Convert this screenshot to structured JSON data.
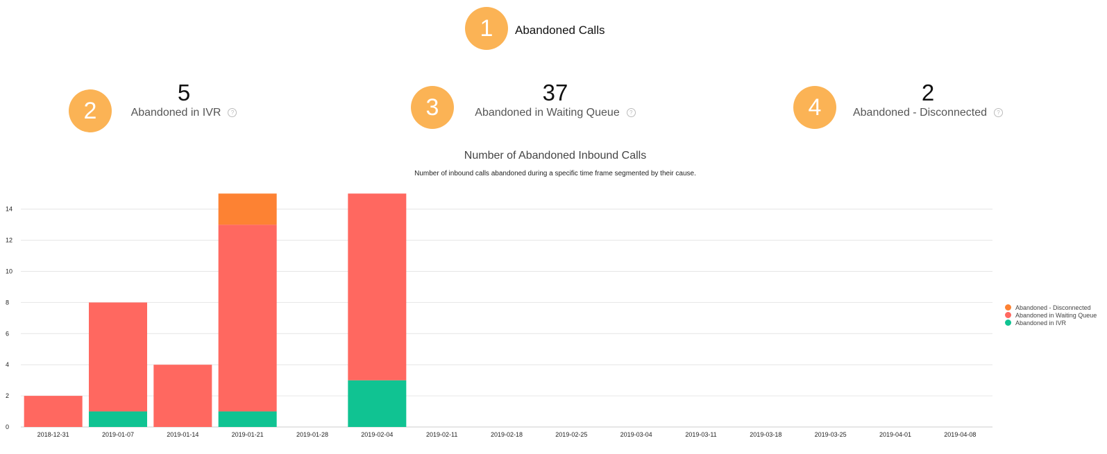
{
  "header": {
    "badge": "1",
    "title": "Abandoned Calls"
  },
  "kpis": [
    {
      "badge": "2",
      "value": "5",
      "label": "Abandoned in IVR",
      "help_icon": "question-circle-icon"
    },
    {
      "badge": "3",
      "value": "37",
      "label": "Abandoned in Waiting Queue",
      "help_icon": "question-circle-icon"
    },
    {
      "badge": "4",
      "value": "2",
      "label": "Abandoned - Disconnected",
      "help_icon": "question-circle-icon"
    }
  ],
  "colors": {
    "badge": "#fbb355",
    "disconnected": "#fd8233",
    "waiting_queue": "#ff6860",
    "ivr": "#10c392",
    "grid": "#e6e6e6"
  },
  "chart_data": {
    "type": "bar",
    "stacked": true,
    "title": "Number of Abandoned Inbound Calls",
    "subtitle": "Number of inbound calls abandoned during a specific time frame segmented by their cause.",
    "categories": [
      "2018-12-31",
      "2019-01-07",
      "2019-01-14",
      "2019-01-21",
      "2019-01-28",
      "2019-02-04",
      "2019-02-11",
      "2019-02-18",
      "2019-02-25",
      "2019-03-04",
      "2019-03-11",
      "2019-03-18",
      "2019-03-25",
      "2019-04-01",
      "2019-04-08"
    ],
    "series": [
      {
        "name": "Abandoned in IVR",
        "color": "#10c392",
        "values": [
          0,
          1,
          0,
          1,
          0,
          3,
          0,
          0,
          0,
          0,
          0,
          0,
          0,
          0,
          0
        ]
      },
      {
        "name": "Abandoned in Waiting Queue",
        "color": "#ff6860",
        "values": [
          2,
          7,
          4,
          12,
          0,
          12,
          0,
          0,
          0,
          0,
          0,
          0,
          0,
          0,
          0
        ]
      },
      {
        "name": "Abandoned - Disconnected",
        "color": "#fd8233",
        "values": [
          0,
          0,
          0,
          2,
          0,
          0,
          0,
          0,
          0,
          0,
          0,
          0,
          0,
          0,
          0
        ]
      }
    ],
    "legend_order": [
      "Abandoned - Disconnected",
      "Abandoned in Waiting Queue",
      "Abandoned in IVR"
    ],
    "yticks": [
      0,
      2,
      4,
      6,
      8,
      10,
      12,
      14
    ],
    "ylim": [
      0,
      15
    ],
    "grid": true,
    "legend_position": "right"
  }
}
